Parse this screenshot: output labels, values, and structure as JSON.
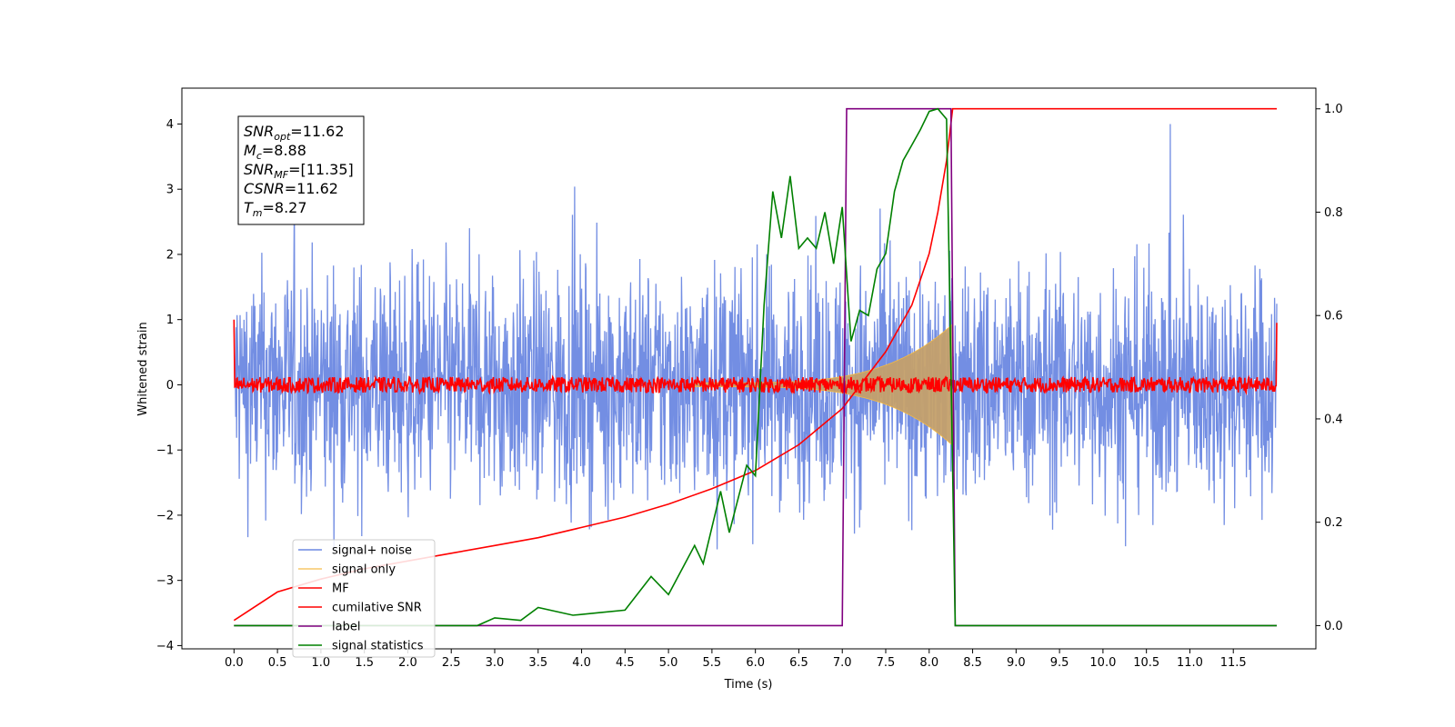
{
  "chart_data": {
    "type": "line",
    "xlabel": "Time (s)",
    "ylabel": "Whitened strain",
    "x_range": [
      -0.6,
      12.45
    ],
    "y_range": [
      -4.05,
      4.55
    ],
    "y2_range": [
      -0.045,
      1.04
    ],
    "x_ticks": [
      0.0,
      0.5,
      1.0,
      1.5,
      2.0,
      2.5,
      3.0,
      3.5,
      4.0,
      4.5,
      5.0,
      5.5,
      6.0,
      6.5,
      7.0,
      7.5,
      8.0,
      8.5,
      9.0,
      9.5,
      10.0,
      10.5,
      11.0,
      11.5
    ],
    "x_tick_labels": [
      "0.0",
      "0.5",
      "1.0",
      "1.5",
      "2.0",
      "2.5",
      "3.0",
      "3.5",
      "4.0",
      "4.5",
      "5.0",
      "5.5",
      "6.0",
      "6.5",
      "7.0",
      "7.5",
      "8.0",
      "8.5",
      "9.0",
      "9.5",
      "10.0",
      "10.5",
      "11.0",
      "11.5"
    ],
    "y_ticks": [
      -4,
      -3,
      -2,
      -1,
      0,
      1,
      2,
      3,
      4
    ],
    "y_tick_labels": [
      "−4",
      "−3",
      "−2",
      "−1",
      "0",
      "1",
      "2",
      "3",
      "4"
    ],
    "y2_ticks": [
      0.0,
      0.2,
      0.4,
      0.6,
      0.8,
      1.0
    ],
    "y2_tick_labels": [
      "0.0",
      "0.2",
      "0.4",
      "0.6",
      "0.8",
      "1.0"
    ],
    "legend_position": "lower-left",
    "annotation": {
      "lines": [
        {
          "sym": "SNR",
          "sub": "opt",
          "value": "=11.62"
        },
        {
          "sym": "M",
          "sub": "c",
          "value": "=8.88"
        },
        {
          "sym": "SNR",
          "sub": "MF",
          "value": "=[11.35]"
        },
        {
          "sym": "CSNR",
          "sub": "",
          "value": "=11.62"
        },
        {
          "sym": "T",
          "sub": "m",
          "value": "=8.27"
        }
      ]
    },
    "series": [
      {
        "name": "signal+ noise",
        "axis": "left",
        "color": "#6b88e2",
        "kind": "noise",
        "description_range": [
          -4.0,
          4.0
        ],
        "t_start": 0.0,
        "t_end": 12.0
      },
      {
        "name": "signal only",
        "axis": "left",
        "color": "#f5b942",
        "kind": "chirp",
        "t_start": 5.3,
        "t_end": 8.27,
        "envelope_end": 0.9
      },
      {
        "name": "MF",
        "axis": "left",
        "color": "#ff0000",
        "kind": "mf",
        "t_start": 0.0,
        "t_end": 12.0,
        "level": 0.0,
        "spread": 0.1
      },
      {
        "name": "cumilative SNR",
        "axis": "right",
        "color": "#ff0000",
        "kind": "line",
        "x": [
          0.0,
          0.5,
          1.0,
          1.5,
          2.0,
          2.5,
          3.0,
          3.5,
          4.0,
          4.5,
          5.0,
          5.5,
          6.0,
          6.5,
          7.0,
          7.5,
          7.8,
          8.0,
          8.1,
          8.2,
          8.27,
          12.0
        ],
        "y": [
          0.01,
          0.065,
          0.09,
          0.11,
          0.125,
          0.14,
          0.155,
          0.17,
          0.19,
          0.21,
          0.235,
          0.265,
          0.3,
          0.35,
          0.42,
          0.53,
          0.62,
          0.72,
          0.8,
          0.9,
          1.0,
          1.0
        ]
      },
      {
        "name": "label",
        "axis": "right",
        "color": "#800080",
        "kind": "line",
        "x": [
          0.0,
          7.0,
          7.05,
          8.25,
          8.3,
          12.0
        ],
        "y": [
          0.0,
          0.0,
          1.0,
          1.0,
          0.0,
          0.0
        ]
      },
      {
        "name": "signal statistics",
        "axis": "right",
        "color": "#008000",
        "kind": "line",
        "x": [
          0.0,
          1.0,
          2.0,
          2.8,
          3.0,
          3.3,
          3.5,
          3.9,
          4.2,
          4.5,
          4.8,
          5.0,
          5.3,
          5.4,
          5.6,
          5.7,
          5.9,
          6.0,
          6.1,
          6.2,
          6.3,
          6.4,
          6.5,
          6.6,
          6.7,
          6.8,
          6.9,
          7.0,
          7.1,
          7.2,
          7.3,
          7.4,
          7.5,
          7.6,
          7.7,
          7.8,
          7.9,
          8.0,
          8.1,
          8.2,
          8.25,
          8.3,
          12.0
        ],
        "y": [
          0.0,
          0.0,
          0.0,
          0.0,
          0.015,
          0.01,
          0.035,
          0.02,
          0.025,
          0.03,
          0.095,
          0.06,
          0.155,
          0.12,
          0.26,
          0.18,
          0.31,
          0.29,
          0.62,
          0.84,
          0.75,
          0.87,
          0.73,
          0.75,
          0.73,
          0.8,
          0.7,
          0.81,
          0.55,
          0.61,
          0.6,
          0.69,
          0.72,
          0.84,
          0.9,
          0.93,
          0.96,
          0.995,
          1.0,
          0.98,
          0.5,
          0.0,
          0.0
        ]
      }
    ]
  }
}
